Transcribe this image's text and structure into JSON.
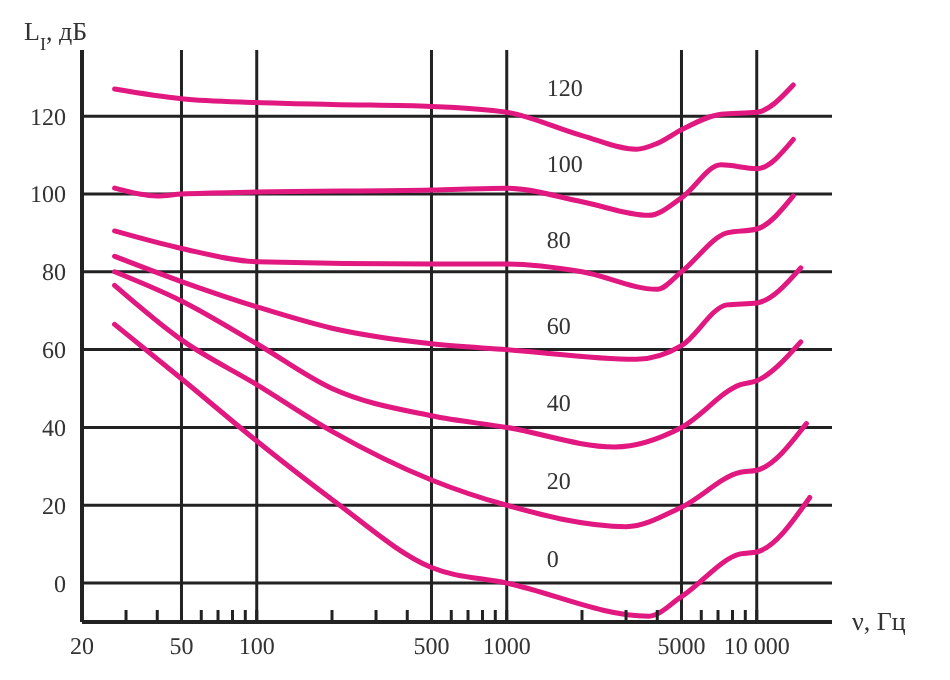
{
  "chart_data": {
    "type": "line",
    "ylabel": "L$_{I}$, дБ",
    "xlabel": "ν, Гц",
    "log": "x",
    "grid": true,
    "marker": "none",
    "line_style": "solid",
    "xlim": [
      20,
      20000
    ],
    "ylim": [
      -10,
      137
    ],
    "xticks": [
      20,
      {
        "value": 30,
        "label": null
      },
      {
        "value": 40,
        "label": null
      },
      50,
      {
        "value": 60,
        "label": null
      },
      {
        "value": 70,
        "label": null
      },
      {
        "value": 80,
        "label": null
      },
      {
        "value": 90,
        "label": null
      },
      100,
      {
        "value": 200,
        "label": null
      },
      {
        "value": 300,
        "label": null
      },
      {
        "value": 400,
        "label": null
      },
      500,
      {
        "value": 600,
        "label": null
      },
      {
        "value": 700,
        "label": null
      },
      {
        "value": 800,
        "label": null
      },
      {
        "value": 900,
        "label": null
      },
      1000,
      {
        "value": 2000,
        "label": null
      },
      {
        "value": 3000,
        "label": null
      },
      {
        "value": 4000,
        "label": null
      },
      5000,
      {
        "value": 6000,
        "label": null
      },
      {
        "value": 7000,
        "label": null
      },
      {
        "value": 8000,
        "label": null
      },
      {
        "value": 9000,
        "label": null
      },
      {
        "value": 10000,
        "label": "10 000"
      }
    ],
    "yticks": [
      0,
      20,
      40,
      60,
      80,
      100,
      120
    ],
    "series": [
      {
        "name": "120",
        "color": "#e0187f",
        "x": [
          27,
          50,
          100,
          200,
          500,
          1000,
          2000,
          3300,
          4000,
          5000,
          7200,
          10000,
          14000
        ],
        "values": [
          127,
          124.5,
          123.5,
          123,
          122.5,
          121,
          115,
          111.5,
          113,
          116.5,
          120.5,
          121,
          128
        ]
      },
      {
        "name": "100",
        "color": "#e0187f",
        "x": [
          27,
          40,
          50,
          100,
          500,
          1000,
          2000,
          3700,
          5000,
          7200,
          10000,
          14000
        ],
        "values": [
          101.5,
          99.5,
          100,
          100.5,
          101,
          101.5,
          98,
          94.5,
          99,
          107.5,
          106.5,
          114
        ]
      },
      {
        "name": "80",
        "color": "#e0187f",
        "x": [
          27,
          50,
          100,
          500,
          1000,
          2000,
          4000,
          5000,
          7600,
          10000,
          14000
        ],
        "values": [
          90.5,
          86,
          82.6,
          82,
          82,
          80,
          75.5,
          80,
          90,
          91,
          99.5
        ]
      },
      {
        "name": "60",
        "color": "#e0187f",
        "x": [
          27,
          50,
          100,
          200,
          500,
          1000,
          3300,
          5000,
          7600,
          10000,
          15000
        ],
        "values": [
          84,
          77.5,
          71,
          65.5,
          61.5,
          60,
          57.5,
          61,
          71.5,
          72,
          81
        ]
      },
      {
        "name": "40",
        "color": "#e0187f",
        "x": [
          27,
          50,
          100,
          200,
          500,
          1000,
          2700,
          5000,
          8600,
          10000,
          15000
        ],
        "values": [
          80,
          72.5,
          61.5,
          50,
          43,
          40,
          35,
          40,
          51,
          52,
          62
        ]
      },
      {
        "name": "20",
        "color": "#e0187f",
        "x": [
          27,
          50,
          100,
          200,
          500,
          1000,
          3000,
          5000,
          8600,
          10000,
          15800
        ],
        "values": [
          76.5,
          62.5,
          51,
          39,
          26.5,
          20,
          14.5,
          19.5,
          28.5,
          29,
          41
        ]
      },
      {
        "name": "0",
        "color": "#e0187f",
        "x": [
          27,
          50,
          100,
          200,
          500,
          1000,
          3700,
          5000,
          8600,
          10000,
          16300
        ],
        "values": [
          66.5,
          52.5,
          36.5,
          21.5,
          4,
          0,
          -8.5,
          -3.5,
          7.5,
          8,
          22
        ]
      }
    ]
  }
}
